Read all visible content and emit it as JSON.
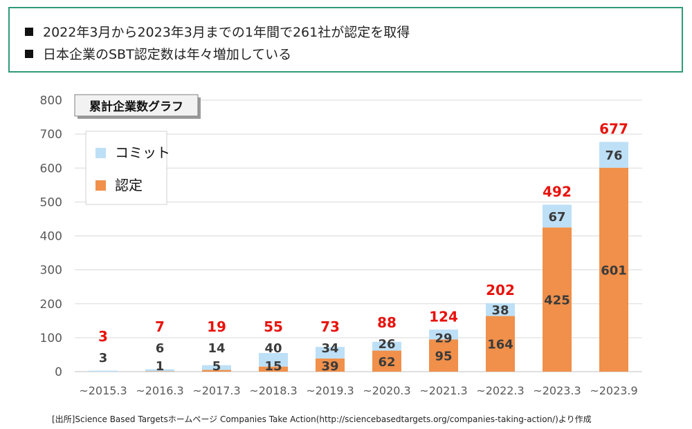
{
  "header": {
    "bullets": [
      "2022年3月から2023年3月までの1年間で261社が認定を取得",
      "日本企業のSBT認定数は年々増加している"
    ]
  },
  "chart_data": {
    "type": "bar",
    "stacked": true,
    "title": "累計企業数グラフ",
    "categories": [
      "~2015.3",
      "~2016.3",
      "~2017.3",
      "~2018.3",
      "~2019.3",
      "~2020.3",
      "~2021.3",
      "~2022.3",
      "~2023.3",
      "~2023.9"
    ],
    "series": [
      {
        "name": "認定",
        "color": "#f0904a",
        "values": [
          0,
          1,
          5,
          15,
          39,
          62,
          95,
          164,
          425,
          601
        ]
      },
      {
        "name": "コミット",
        "color": "#bde0f7",
        "values": [
          3,
          6,
          14,
          40,
          34,
          26,
          29,
          38,
          67,
          76
        ]
      }
    ],
    "totals": [
      3,
      7,
      19,
      55,
      73,
      88,
      124,
      202,
      492,
      677
    ],
    "total_color": "#e8120c",
    "legend_order": [
      "コミット",
      "認定"
    ],
    "legend_position": "top-left",
    "ylim": [
      0,
      800
    ],
    "yticks": [
      0,
      100,
      200,
      300,
      400,
      500,
      600,
      700,
      800
    ],
    "grid": true
  },
  "source_note": "[出所]Science Based Targetsホームページ Companies Take Action(http://sciencebasedtargets.org/companies-taking-action/)より作成"
}
